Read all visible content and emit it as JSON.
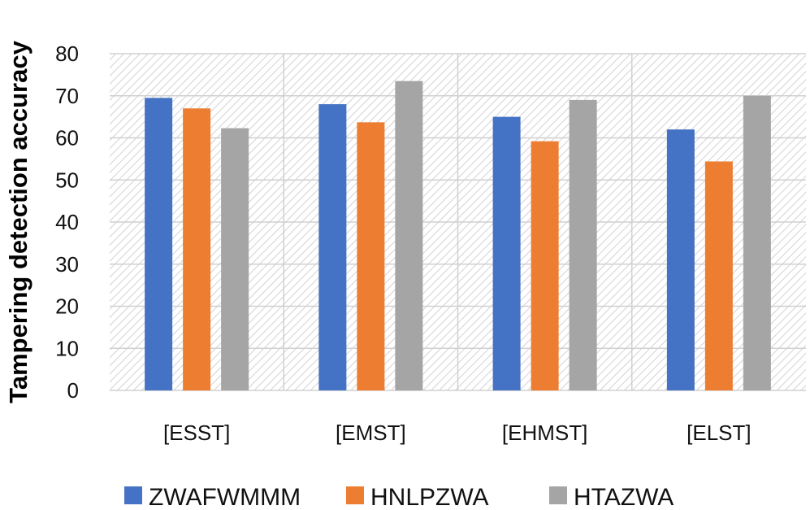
{
  "chart_data": {
    "type": "bar",
    "title": "",
    "xlabel": "",
    "ylabel": "Tampering detection accuracy",
    "categories": [
      "[ESST]",
      "[EMST]",
      "[EHMST]",
      "[ELST]"
    ],
    "series": [
      {
        "name": "ZWAFWMMM",
        "color": "#4472C4",
        "values": [
          69.5,
          68,
          65,
          62
        ]
      },
      {
        "name": "HNLPZWA",
        "color": "#ED7D31",
        "values": [
          67,
          63.7,
          59.2,
          54.4
        ]
      },
      {
        "name": "HTAZWA",
        "color": "#A5A5A5",
        "values": [
          62.3,
          73.5,
          69,
          70
        ]
      }
    ],
    "ylim": [
      0,
      80
    ],
    "yticks": [
      0,
      10,
      20,
      30,
      40,
      50,
      60,
      70,
      80
    ],
    "grid": true,
    "legend_position": "bottom"
  }
}
